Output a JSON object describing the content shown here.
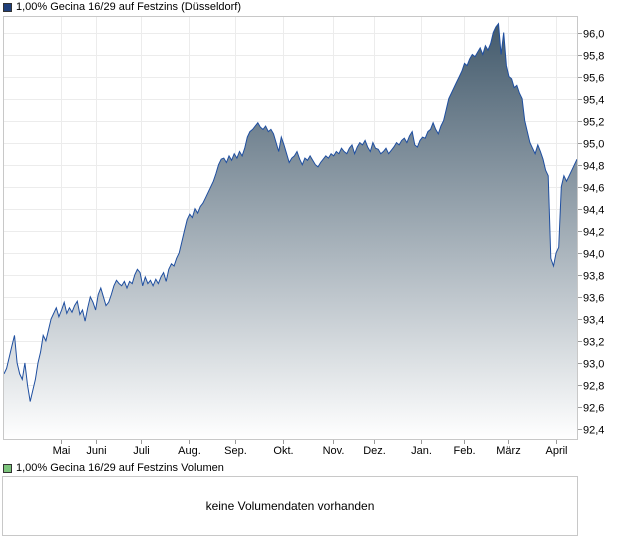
{
  "legends": {
    "price": {
      "label": "1,00% Gecina 16/29 auf Festzins (Düsseldorf)",
      "color": "#1f3f7a"
    },
    "volume": {
      "label": "1,00% Gecina 16/29 auf Festzins Volumen",
      "color": "#7cc47c"
    }
  },
  "volume_panel": {
    "message": "keine Volumendaten vorhanden"
  },
  "chart_data": {
    "type": "area",
    "series": [
      {
        "values": [
          92.9,
          92.95,
          93.05,
          93.15,
          93.25,
          93.0,
          92.9,
          92.85,
          93.0,
          92.8,
          92.65,
          92.75,
          92.85,
          93.0,
          93.1,
          93.25,
          93.2,
          93.3,
          93.4,
          93.45,
          93.5,
          93.42,
          93.48,
          93.55,
          93.45,
          93.5,
          93.46,
          93.52,
          93.56,
          93.44,
          93.48,
          93.38,
          93.5,
          93.6,
          93.55,
          93.48,
          93.62,
          93.68,
          93.6,
          93.52,
          93.55,
          93.62,
          93.7,
          93.75,
          93.72,
          93.7,
          93.74,
          93.68,
          93.74,
          93.72,
          93.8,
          93.85,
          93.82,
          93.7,
          93.78,
          93.72,
          93.75,
          93.7,
          93.76,
          93.72,
          93.78,
          93.82,
          93.74,
          93.85,
          93.9,
          93.88,
          93.95,
          94.0,
          94.1,
          94.2,
          94.3,
          94.35,
          94.32,
          94.4,
          94.36,
          94.42,
          94.45,
          94.5,
          94.55,
          94.6,
          94.65,
          94.72,
          94.8,
          94.85,
          94.86,
          94.82,
          94.88,
          94.84,
          94.9,
          94.86,
          94.92,
          94.88,
          94.95,
          95.05,
          95.1,
          95.12,
          95.15,
          95.18,
          95.14,
          95.12,
          95.15,
          95.1,
          95.12,
          95.08,
          95.0,
          94.92,
          95.05,
          94.98,
          94.9,
          94.82,
          94.86,
          94.88,
          94.92,
          94.85,
          94.8,
          94.86,
          94.84,
          94.88,
          94.84,
          94.8,
          94.78,
          94.82,
          94.85,
          94.88,
          94.86,
          94.9,
          94.88,
          94.92,
          94.9,
          94.95,
          94.92,
          94.9,
          94.95,
          94.98,
          94.9,
          94.96,
          95.0,
          94.98,
          95.02,
          94.96,
          94.92,
          95.0,
          94.95,
          94.94,
          94.9,
          94.92,
          94.95,
          94.9,
          94.93,
          94.96,
          95.0,
          94.98,
          95.02,
          95.04,
          95.0,
          95.06,
          95.1,
          94.98,
          94.96,
          95.02,
          95.05,
          95.04,
          95.1,
          95.12,
          95.18,
          95.12,
          95.08,
          95.15,
          95.2,
          95.3,
          95.4,
          95.45,
          95.5,
          95.55,
          95.6,
          95.65,
          95.72,
          95.7,
          95.76,
          95.8,
          95.78,
          95.82,
          95.86,
          95.8,
          95.88,
          95.84,
          95.9,
          96.0,
          96.05,
          96.08,
          95.8,
          96.0,
          95.7,
          95.6,
          95.58,
          95.5,
          95.52,
          95.45,
          95.4,
          95.2,
          95.1,
          95.0,
          94.95,
          94.9,
          94.98,
          94.92,
          94.85,
          94.75,
          94.7,
          93.95,
          93.88,
          94.0,
          94.05,
          94.6,
          94.7,
          94.65,
          94.7,
          94.75,
          94.8,
          94.85
        ]
      }
    ],
    "x_tick_labels": [
      "Mai",
      "Juni",
      "Juli",
      "Aug.",
      "Sep.",
      "Okt.",
      "Nov.",
      "Dez.",
      "Jan.",
      "Feb.",
      "März",
      "April"
    ],
    "y_tick_labels": [
      "92,4",
      "92,6",
      "92,8",
      "93,0",
      "93,2",
      "93,4",
      "93,6",
      "93,8",
      "94,0",
      "94,2",
      "94,4",
      "94,6",
      "94,8",
      "95,0",
      "95,2",
      "95,4",
      "95,6",
      "95,8",
      "96,0"
    ],
    "y_ticks": [
      92.4,
      92.6,
      92.8,
      93.0,
      93.2,
      93.4,
      93.6,
      93.8,
      94.0,
      94.2,
      94.4,
      94.6,
      94.8,
      95.0,
      95.2,
      95.4,
      95.6,
      95.8,
      96.0
    ],
    "ylim": [
      92.3,
      96.15
    ],
    "x_tick_positions": [
      0.1003,
      0.1616,
      0.2392,
      0.3239,
      0.4034,
      0.4871,
      0.5745,
      0.6459,
      0.7269,
      0.8014,
      0.8785,
      0.9611
    ],
    "grid": true,
    "line_color": "#1f4fa0",
    "fill_top_color": "#435a6c",
    "fill_bottom_color": "#ffffff"
  }
}
